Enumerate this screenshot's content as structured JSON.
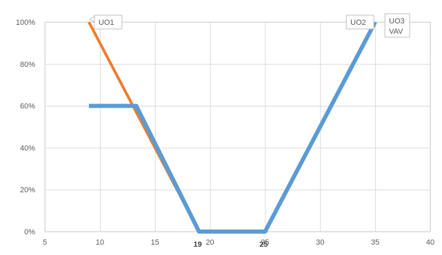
{
  "chart_data": {
    "type": "line",
    "title": "",
    "xlabel": "",
    "ylabel": "",
    "xlim": [
      5,
      40
    ],
    "ylim": [
      0,
      100
    ],
    "x_ticks": [
      5,
      10,
      15,
      20,
      25,
      30,
      35,
      40
    ],
    "y_ticks": [
      0,
      20,
      40,
      60,
      80,
      100
    ],
    "y_tick_labels": [
      "0%",
      "20%",
      "40%",
      "60%",
      "80%",
      "100%"
    ],
    "extra_x_labels": [
      {
        "x": 19,
        "label": "19"
      },
      {
        "x": 25,
        "label": "25"
      }
    ],
    "grid": true,
    "series": [
      {
        "color": "#ED7D31",
        "points": [
          [
            9,
            100
          ],
          [
            19,
            0
          ]
        ]
      },
      {
        "color": "#5B9BD5",
        "points": [
          [
            9,
            60
          ],
          [
            13.3,
            60
          ],
          [
            19,
            0
          ],
          [
            25,
            0
          ],
          [
            35,
            100
          ]
        ]
      }
    ],
    "annotations": [
      {
        "lines": [
          "UO1"
        ],
        "x": 9,
        "y": 100
      },
      {
        "lines": [
          "UO2"
        ],
        "x": 35,
        "y": 100
      },
      {
        "lines": [
          "UO3",
          "VAV"
        ],
        "x": 35,
        "y": 100
      }
    ]
  }
}
